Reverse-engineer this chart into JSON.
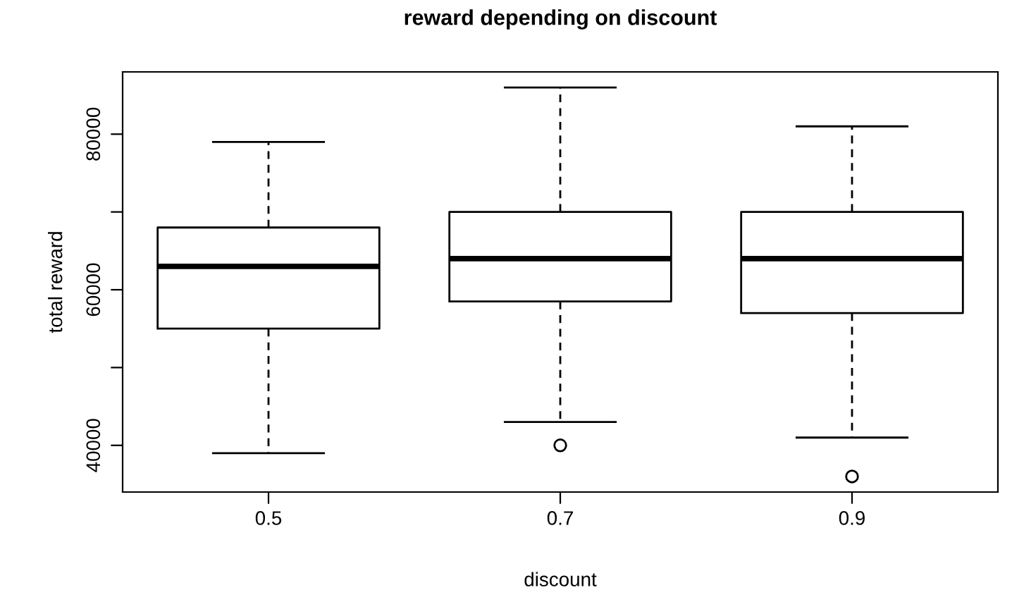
{
  "chart_data": {
    "type": "box",
    "title": "reward depending on discount",
    "xlabel": "discount",
    "ylabel": "total reward",
    "categories": [
      "0.5",
      "0.7",
      "0.9"
    ],
    "boxes": [
      {
        "low": 39000,
        "q1": 55000,
        "median": 63000,
        "q3": 68000,
        "high": 79000
      },
      {
        "low": 43000,
        "q1": 58500,
        "median": 64000,
        "q3": 70000,
        "high": 86000,
        "outliers": [
          40000
        ]
      },
      {
        "low": 41000,
        "q1": 57000,
        "median": 64000,
        "q3": 70000,
        "high": 81000,
        "outliers": [
          36000
        ]
      }
    ],
    "ylim": [
      34000,
      88000
    ],
    "yticks": [
      40000,
      {
        "value": 50000,
        "label": null
      },
      60000,
      {
        "value": 70000,
        "label": null
      },
      80000
    ],
    "grid": false
  }
}
